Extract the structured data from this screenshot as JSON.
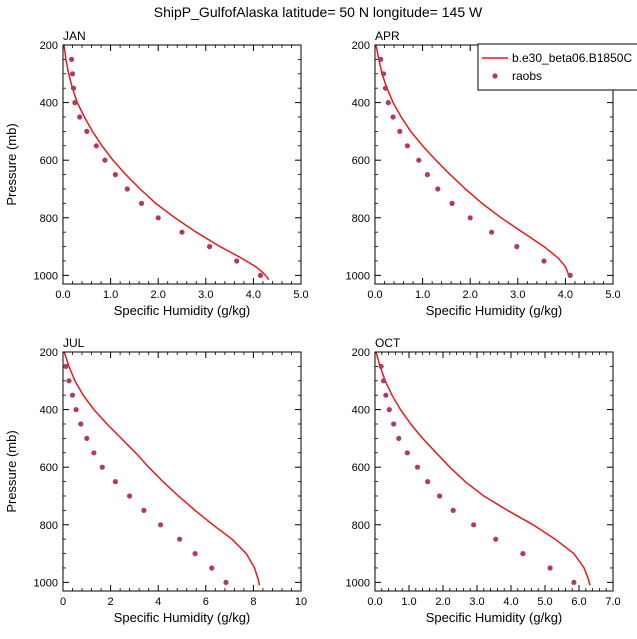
{
  "figure": {
    "title": "ShipP_GulfofAlaska  latitude= 50 N longitude= 145 W"
  },
  "legend": {
    "model_label": "b.e30_beta06.B1850C",
    "obs_label": "raobs",
    "model_color": "#e31a1c",
    "obs_color": "#b03a66"
  },
  "chart_data": [
    {
      "type": "line",
      "title": "JAN",
      "xlabel": "Specific Humidity (g/kg)",
      "ylabel": "Pressure (mb)",
      "xlim": [
        0,
        5
      ],
      "ylim": [
        1030,
        200
      ],
      "xticks": [
        "0.0",
        "1.0",
        "2.0",
        "3.0",
        "4.0",
        "5.0"
      ],
      "yticks": [
        "200",
        "400",
        "600",
        "800",
        "1000"
      ],
      "series": [
        {
          "name": "b.e30_beta06.B1850C",
          "style": "line",
          "x": [
            0.02,
            0.06,
            0.12,
            0.2,
            0.3,
            0.45,
            0.62,
            0.82,
            1.05,
            1.32,
            1.62,
            1.95,
            2.35,
            2.8,
            3.3,
            3.75,
            4.05,
            4.2,
            4.28,
            4.32
          ],
          "y": [
            200,
            250,
            300,
            350,
            400,
            450,
            500,
            550,
            600,
            650,
            700,
            750,
            800,
            850,
            900,
            940,
            970,
            990,
            1005,
            1015
          ]
        },
        {
          "name": "raobs",
          "style": "points",
          "x": [
            0.18,
            0.2,
            0.22,
            0.25,
            0.35,
            0.5,
            0.7,
            0.88,
            1.1,
            1.35,
            1.65,
            2.0,
            2.5,
            3.08,
            3.65,
            4.15
          ],
          "y": [
            250,
            300,
            350,
            400,
            450,
            500,
            550,
            600,
            650,
            700,
            750,
            800,
            850,
            900,
            950,
            1000
          ]
        }
      ]
    },
    {
      "type": "line",
      "title": "APR",
      "xlabel": "Specific Humidity (g/kg)",
      "ylabel": "",
      "xlim": [
        0,
        5
      ],
      "ylim": [
        1030,
        200
      ],
      "xticks": [
        "0.0",
        "1.0",
        "2.0",
        "3.0",
        "4.0",
        "5.0"
      ],
      "yticks": [
        "200",
        "400",
        "600",
        "800",
        "1000"
      ],
      "series": [
        {
          "name": "b.e30_beta06.B1850C",
          "style": "line",
          "x": [
            0.02,
            0.08,
            0.15,
            0.25,
            0.38,
            0.55,
            0.75,
            1.0,
            1.28,
            1.58,
            1.9,
            2.25,
            2.65,
            3.1,
            3.55,
            3.85,
            4.0,
            4.05,
            4.08
          ],
          "y": [
            200,
            250,
            300,
            350,
            400,
            450,
            500,
            550,
            600,
            650,
            700,
            750,
            800,
            850,
            900,
            940,
            970,
            990,
            1005
          ]
        },
        {
          "name": "raobs",
          "style": "points",
          "x": [
            0.12,
            0.18,
            0.22,
            0.28,
            0.38,
            0.52,
            0.68,
            0.92,
            1.1,
            1.32,
            1.62,
            2.0,
            2.45,
            2.98,
            3.55,
            4.1
          ],
          "y": [
            250,
            300,
            350,
            400,
            450,
            500,
            550,
            600,
            650,
            700,
            750,
            800,
            850,
            900,
            950,
            1000
          ]
        }
      ]
    },
    {
      "type": "line",
      "title": "JUL",
      "xlabel": "Specific Humidity (g/kg)",
      "ylabel": "Pressure (mb)",
      "xlim": [
        0,
        10
      ],
      "ylim": [
        1030,
        200
      ],
      "xticks": [
        "0",
        "2",
        "4",
        "6",
        "8",
        "10"
      ],
      "yticks": [
        "200",
        "400",
        "600",
        "800",
        "1000"
      ],
      "series": [
        {
          "name": "b.e30_beta06.B1850C",
          "style": "line",
          "x": [
            0.05,
            0.25,
            0.5,
            0.85,
            1.3,
            1.85,
            2.45,
            3.05,
            3.6,
            4.2,
            4.85,
            5.55,
            6.3,
            7.1,
            7.7,
            8.05,
            8.2,
            8.25
          ],
          "y": [
            200,
            250,
            300,
            350,
            400,
            450,
            500,
            550,
            600,
            650,
            700,
            750,
            800,
            850,
            900,
            950,
            990,
            1010
          ]
        },
        {
          "name": "raobs",
          "style": "points",
          "x": [
            0.12,
            0.25,
            0.4,
            0.55,
            0.75,
            1.0,
            1.3,
            1.65,
            2.2,
            2.8,
            3.4,
            4.1,
            4.9,
            5.55,
            6.25,
            6.85
          ],
          "y": [
            250,
            300,
            350,
            400,
            450,
            500,
            550,
            600,
            650,
            700,
            750,
            800,
            850,
            900,
            950,
            1000
          ]
        }
      ]
    },
    {
      "type": "line",
      "title": "OCT",
      "xlabel": "Specific Humidity (g/kg)",
      "ylabel": "",
      "xlim": [
        0,
        7
      ],
      "ylim": [
        1030,
        200
      ],
      "xticks": [
        "0.0",
        "1.0",
        "2.0",
        "3.0",
        "4.0",
        "5.0",
        "6.0",
        "7.0"
      ],
      "yticks": [
        "200",
        "400",
        "600",
        "800",
        "1000"
      ],
      "series": [
        {
          "name": "b.e30_beta06.B1850C",
          "style": "line",
          "x": [
            0.03,
            0.15,
            0.3,
            0.5,
            0.75,
            1.05,
            1.4,
            1.8,
            2.2,
            2.65,
            3.2,
            3.9,
            4.65,
            5.3,
            5.85,
            6.15,
            6.28,
            6.32
          ],
          "y": [
            200,
            250,
            300,
            350,
            400,
            450,
            500,
            550,
            600,
            650,
            700,
            750,
            800,
            850,
            900,
            950,
            990,
            1010
          ]
        },
        {
          "name": "raobs",
          "style": "points",
          "x": [
            0.18,
            0.25,
            0.32,
            0.42,
            0.55,
            0.7,
            0.95,
            1.25,
            1.55,
            1.9,
            2.3,
            2.9,
            3.55,
            4.35,
            5.15,
            5.85
          ],
          "y": [
            250,
            300,
            350,
            400,
            450,
            500,
            550,
            600,
            650,
            700,
            750,
            800,
            850,
            900,
            950,
            1000
          ]
        }
      ]
    }
  ]
}
